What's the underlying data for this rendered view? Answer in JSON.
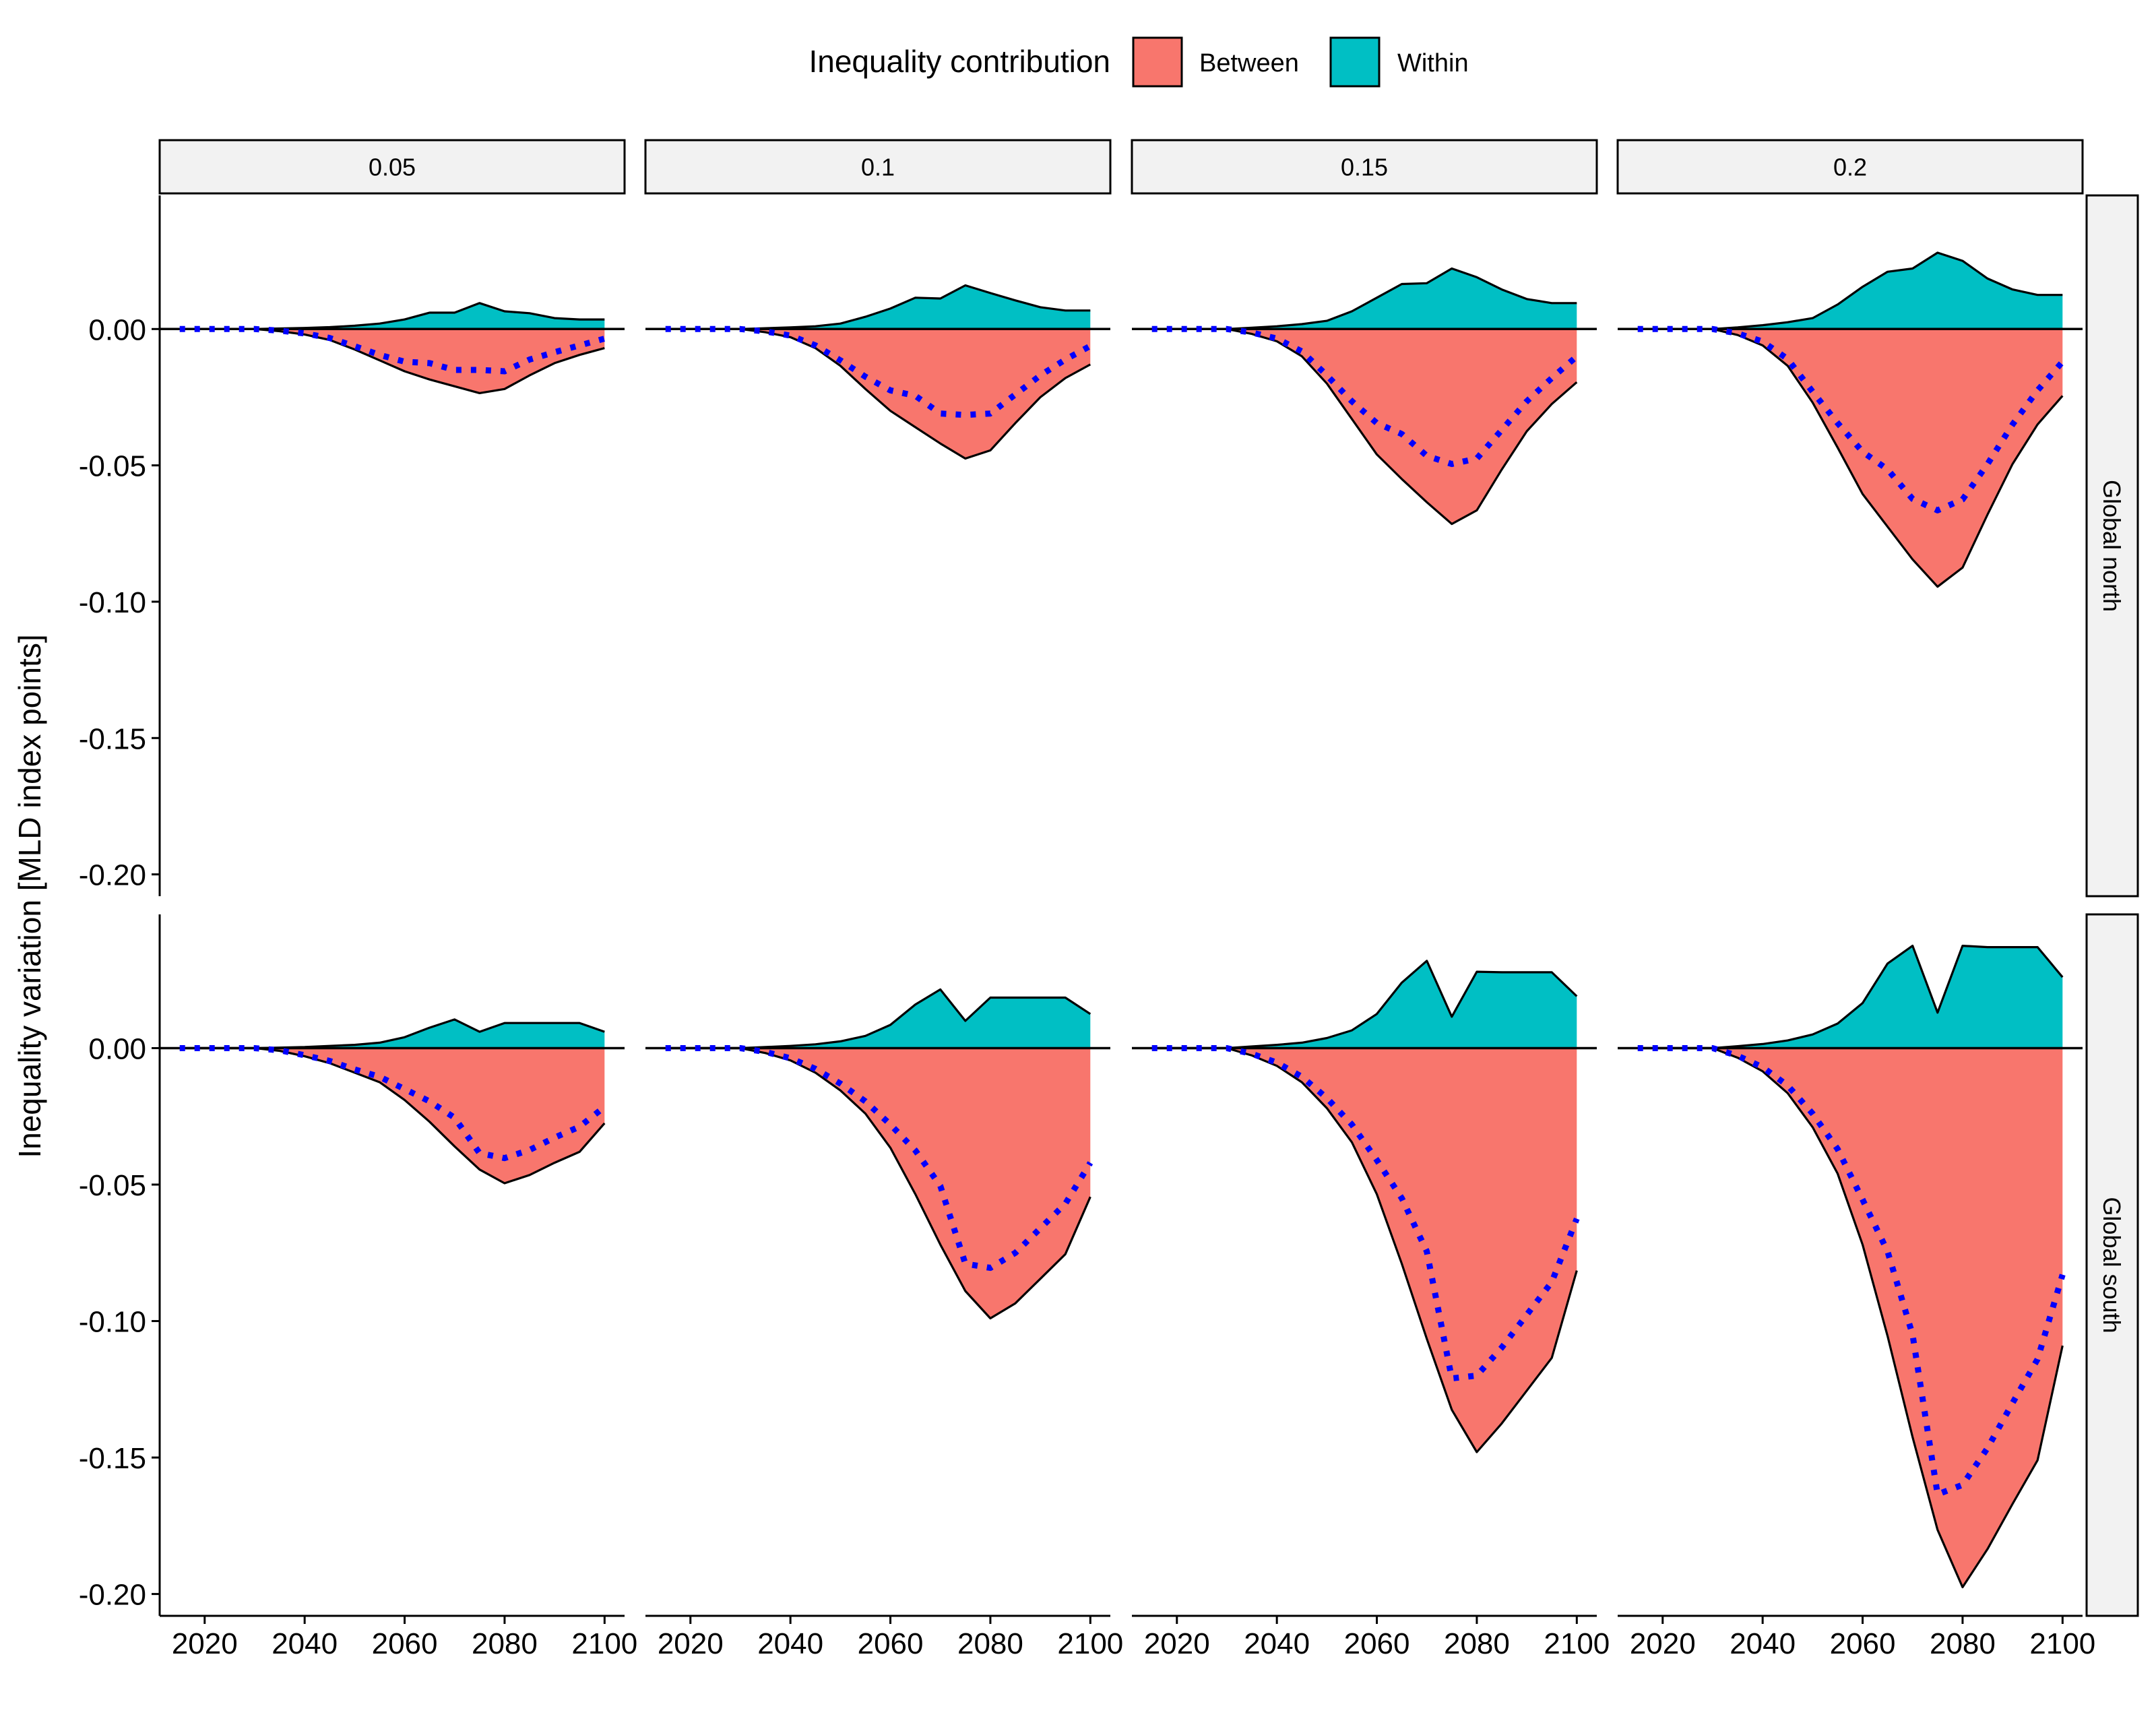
{
  "chart_data": {
    "type": "area",
    "ylabel": "Inequality variation [MLD index points]",
    "xlabel": "",
    "legend": {
      "title": "Inequality contribution",
      "position": "top",
      "entries": [
        {
          "name": "Between",
          "color": "#F8766D"
        },
        {
          "name": "Within",
          "color": "#00BFC4"
        }
      ]
    },
    "facet_cols": [
      "0.05",
      "0.1",
      "0.15",
      "0.2"
    ],
    "facet_rows": [
      "Global north",
      "Global south"
    ],
    "x": [
      2015,
      2020,
      2025,
      2030,
      2035,
      2040,
      2045,
      2050,
      2055,
      2060,
      2065,
      2070,
      2075,
      2080,
      2085,
      2090,
      2095,
      2100
    ],
    "xticks": [
      2020,
      2040,
      2060,
      2080,
      2100
    ],
    "xlim": [
      2011,
      2104
    ],
    "yticks": [
      0.0,
      -0.05,
      -0.1,
      -0.15,
      -0.2
    ],
    "ytick_labels": [
      "0.00",
      "-0.05",
      "-0.10",
      "-0.15",
      "-0.20"
    ],
    "ylim_north": [
      -0.208,
      0.049
    ],
    "ylim_south": [
      -0.208,
      0.049
    ],
    "line_color": "#0000FF",
    "panels": {
      "Global north": {
        "0.05": {
          "within": [
            0,
            0,
            0,
            0,
            0.0002,
            0.0004,
            0.0007,
            0.0012,
            0.002,
            0.0035,
            0.006,
            0.006,
            0.0095,
            0.0065,
            0.0058,
            0.004,
            0.0035,
            0.0035
          ],
          "between": [
            0,
            0,
            0,
            0,
            -0.0008,
            -0.002,
            -0.004,
            -0.0075,
            -0.0115,
            -0.0155,
            -0.0185,
            -0.021,
            -0.0235,
            -0.022,
            -0.017,
            -0.0125,
            -0.0095,
            -0.007
          ],
          "total": [
            0,
            0,
            0,
            0,
            -0.0006,
            -0.0016,
            -0.0033,
            -0.0063,
            -0.0095,
            -0.012,
            -0.0125,
            -0.015,
            -0.015,
            -0.0155,
            -0.0112,
            -0.0085,
            -0.006,
            -0.0035
          ]
        },
        "0.1": {
          "within": [
            0,
            0,
            0,
            0,
            0.0003,
            0.0006,
            0.001,
            0.002,
            0.0045,
            0.0075,
            0.0115,
            0.0112,
            0.016,
            0.0132,
            0.0105,
            0.008,
            0.0068,
            0.0068
          ],
          "between": [
            0,
            0,
            0,
            0,
            -0.0012,
            -0.003,
            -0.007,
            -0.0135,
            -0.022,
            -0.03,
            -0.036,
            -0.042,
            -0.0475,
            -0.0445,
            -0.0345,
            -0.025,
            -0.018,
            -0.013
          ],
          "total": [
            0,
            0,
            0,
            0,
            -0.0009,
            -0.0024,
            -0.006,
            -0.0115,
            -0.0175,
            -0.0225,
            -0.0245,
            -0.031,
            -0.0315,
            -0.031,
            -0.024,
            -0.017,
            -0.0112,
            -0.0062
          ]
        },
        "0.15": {
          "within": [
            0,
            0,
            0,
            0,
            0.0005,
            0.001,
            0.0018,
            0.003,
            0.0065,
            0.0115,
            0.0165,
            0.0168,
            0.0222,
            0.019,
            0.0145,
            0.011,
            0.0095,
            0.0095
          ],
          "between": [
            0,
            0,
            0,
            0,
            -0.0018,
            -0.0045,
            -0.01,
            -0.02,
            -0.033,
            -0.046,
            -0.055,
            -0.0635,
            -0.0715,
            -0.0665,
            -0.0515,
            -0.0375,
            -0.0275,
            -0.0195
          ],
          "total": [
            0,
            0,
            0,
            0,
            -0.0013,
            -0.0035,
            -0.0082,
            -0.017,
            -0.0265,
            -0.0345,
            -0.0385,
            -0.0465,
            -0.0495,
            -0.0475,
            -0.037,
            -0.0265,
            -0.018,
            -0.01
          ]
        },
        "0.2": {
          "within": [
            0,
            0,
            0,
            0,
            0.0006,
            0.0014,
            0.0025,
            0.004,
            0.009,
            0.0155,
            0.021,
            0.0222,
            0.028,
            0.025,
            0.0185,
            0.0145,
            0.0125,
            0.0125
          ],
          "between": [
            0,
            0,
            0,
            0,
            -0.0022,
            -0.006,
            -0.0135,
            -0.027,
            -0.0435,
            -0.0605,
            -0.0725,
            -0.0845,
            -0.0945,
            -0.0875,
            -0.068,
            -0.0495,
            -0.035,
            -0.0245
          ],
          "total": [
            0,
            0,
            0,
            0,
            -0.0016,
            -0.0046,
            -0.011,
            -0.023,
            -0.0345,
            -0.045,
            -0.0515,
            -0.0623,
            -0.0665,
            -0.0625,
            -0.0495,
            -0.035,
            -0.0225,
            -0.012
          ]
        }
      },
      "Global south": {
        "0.05": {
          "within": [
            0,
            0,
            0,
            0,
            0.0002,
            0.0004,
            0.0008,
            0.0012,
            0.002,
            0.004,
            0.0075,
            0.0105,
            0.006,
            0.0092,
            0.0092,
            0.0092,
            0.0092,
            0.006
          ],
          "between": [
            0,
            0,
            0,
            0,
            -0.001,
            -0.003,
            -0.0055,
            -0.009,
            -0.0125,
            -0.019,
            -0.027,
            -0.036,
            -0.0445,
            -0.0495,
            -0.0465,
            -0.042,
            -0.038,
            -0.0275
          ],
          "total": [
            0,
            0,
            0,
            0,
            -0.0008,
            -0.0026,
            -0.0047,
            -0.0078,
            -0.0105,
            -0.015,
            -0.0195,
            -0.0255,
            -0.0385,
            -0.0403,
            -0.0373,
            -0.0328,
            -0.0288,
            -0.0215
          ]
        },
        "0.1": {
          "within": [
            0,
            0,
            0,
            0,
            0.0004,
            0.0008,
            0.0014,
            0.0025,
            0.0045,
            0.0085,
            0.016,
            0.0215,
            0.01,
            0.0185,
            0.0185,
            0.0185,
            0.0185,
            0.0125
          ],
          "between": [
            0,
            0,
            0,
            0,
            -0.0018,
            -0.0045,
            -0.009,
            -0.0155,
            -0.024,
            -0.0365,
            -0.0535,
            -0.072,
            -0.089,
            -0.099,
            -0.0935,
            -0.0845,
            -0.0755,
            -0.0545
          ],
          "total": [
            0,
            0,
            0,
            0,
            -0.0014,
            -0.0037,
            -0.0076,
            -0.013,
            -0.0195,
            -0.028,
            -0.0375,
            -0.0505,
            -0.079,
            -0.0805,
            -0.075,
            -0.066,
            -0.057,
            -0.042
          ]
        },
        "0.15": {
          "within": [
            0,
            0,
            0,
            0,
            0.0006,
            0.0012,
            0.002,
            0.0037,
            0.0065,
            0.0125,
            0.024,
            0.032,
            0.0115,
            0.028,
            0.0278,
            0.0278,
            0.0278,
            0.019
          ],
          "between": [
            0,
            0,
            0,
            0,
            -0.0027,
            -0.0065,
            -0.0125,
            -0.022,
            -0.0345,
            -0.0535,
            -0.079,
            -0.1065,
            -0.1325,
            -0.148,
            -0.1375,
            -0.1255,
            -0.1135,
            -0.0815
          ],
          "total": [
            0,
            0,
            0,
            0,
            -0.0021,
            -0.0053,
            -0.0105,
            -0.0183,
            -0.028,
            -0.041,
            -0.055,
            -0.0745,
            -0.121,
            -0.12,
            -0.1097,
            -0.0977,
            -0.0857,
            -0.0625
          ]
        },
        "0.2": {
          "within": [
            0,
            0,
            0,
            0,
            0.0007,
            0.0015,
            0.0028,
            0.005,
            0.009,
            0.0165,
            0.031,
            0.0375,
            0.013,
            0.0375,
            0.037,
            0.037,
            0.037,
            0.026
          ],
          "between": [
            0,
            0,
            0,
            0,
            -0.0035,
            -0.0085,
            -0.0165,
            -0.029,
            -0.046,
            -0.072,
            -0.1055,
            -0.1425,
            -0.1765,
            -0.1975,
            -0.1835,
            -0.167,
            -0.151,
            -0.109
          ],
          "total": [
            0,
            0,
            0,
            0,
            -0.0028,
            -0.007,
            -0.0137,
            -0.024,
            -0.037,
            -0.0555,
            -0.0745,
            -0.105,
            -0.1635,
            -0.16,
            -0.1465,
            -0.13,
            -0.114,
            -0.083
          ]
        }
      }
    }
  }
}
